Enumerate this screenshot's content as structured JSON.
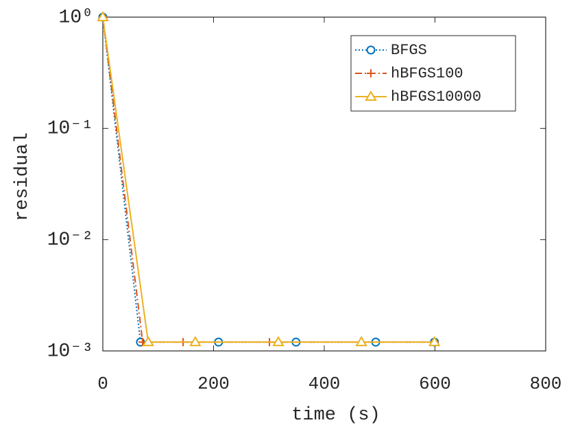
{
  "chart_data": {
    "type": "line",
    "x_label": "time (s)",
    "y_label": "residual",
    "xlim": [
      0,
      800
    ],
    "xticks": [
      0,
      200,
      400,
      600,
      800
    ],
    "ylim": [
      0.001,
      1
    ],
    "log_y": true,
    "yticks": [
      {
        "value": 1,
        "label": "10⁰"
      },
      {
        "value": 0.1,
        "label": "10⁻¹"
      },
      {
        "value": 0.01,
        "label": "10⁻²"
      },
      {
        "value": 0.001,
        "label": "10⁻³"
      }
    ],
    "legend": "upper right",
    "series": [
      {
        "name": "BFGS",
        "color": "#0072bd",
        "linestyle": "dotted",
        "marker": "circle",
        "x": [
          0,
          68,
          209,
          349,
          493,
          599
        ],
        "values": [
          1,
          0.0012,
          0.0012,
          0.0012,
          0.0012,
          0.0012
        ]
      },
      {
        "name": "hBFGS100",
        "color": "#d95319",
        "linestyle": "dashdot",
        "marker": "plus",
        "x": [
          0,
          72,
          145,
          301,
          467,
          599
        ],
        "values": [
          1,
          0.0012,
          0.0012,
          0.0012,
          0.0012,
          0.0012
        ]
      },
      {
        "name": "hBFGS10000",
        "color": "#edb120",
        "linestyle": "solid",
        "marker": "triangle",
        "x": [
          0,
          82,
          167,
          317,
          467,
          599
        ],
        "values": [
          1,
          0.0012,
          0.0012,
          0.0012,
          0.0012,
          0.0012
        ]
      }
    ]
  }
}
